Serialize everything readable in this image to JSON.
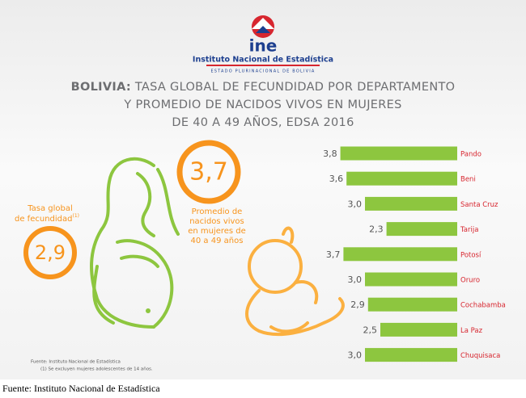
{
  "header": {
    "logo": "ine",
    "institution": "Instituto Nacional de Estadística",
    "state": "ESTADO PLURINACIONAL DE BOLIVIA"
  },
  "title_lead": "BOLIVIA:",
  "title": [
    "TASA GLOBAL DE FECUNDIDAD POR DEPARTAMENTO",
    "Y PROMEDIO DE NACIDOS VIVOS EN MUJERES",
    "DE 40 A 49 AÑOS, EDSA 2016"
  ],
  "highlights": [
    {
      "label": [
        "Tasa global",
        "de fecundidad"
      ],
      "marker": "(1)",
      "value": "2,9"
    },
    {
      "label": [
        "Promedio de",
        "nacidos vivos",
        "en mujeres de",
        "40 a 49 años"
      ],
      "value": "3,7"
    }
  ],
  "notes": [
    "Fuente:  Instituto Nacional de Estadística",
    "(1) Se excluyen mujeres adolescentes de 14 años."
  ],
  "caption": "Fuente: Instituto Nacional de Estadística",
  "chart_data": {
    "type": "bar",
    "orientation": "horizontal",
    "color": "#8dc63f",
    "categories": [
      "Pando",
      "Beni",
      "Santa Cruz",
      "Tarija",
      "Potosí",
      "Oruro",
      "Cochabamba",
      "La Paz",
      "Chuquisaca"
    ],
    "values": [
      3.8,
      3.6,
      3.0,
      2.3,
      3.7,
      3.0,
      2.9,
      2.5,
      3.0
    ],
    "value_labels": [
      "3,8",
      "3,6",
      "3,0",
      "2,3",
      "3,7",
      "3,0",
      "2,9",
      "2,5",
      "3,0"
    ]
  }
}
